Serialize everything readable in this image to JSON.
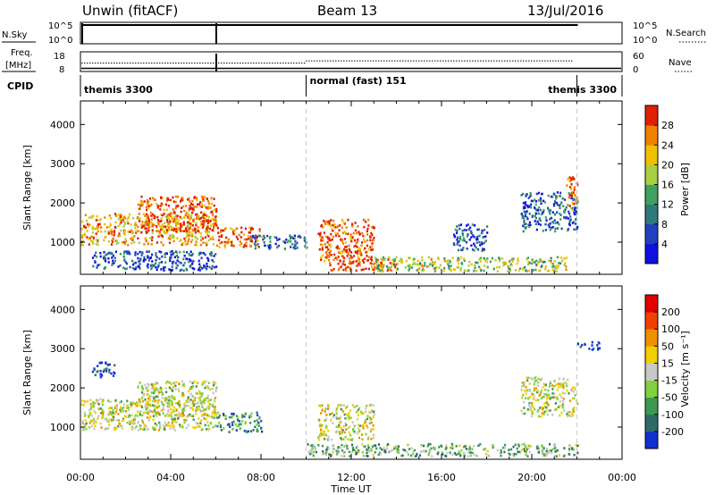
{
  "header": {
    "station": "Unwin (fitACF)",
    "beam": "Beam 13",
    "date": "13/Jul/2016"
  },
  "aux_panels": {
    "nsky_label": "N.Sky",
    "nsky_tick_top": "10^5",
    "nsky_tick_bottom": "10^0",
    "nsearch_label": "N.Search",
    "freq_label": "Freq.",
    "freq_unit": "[MHz]",
    "freq_ticks": [
      "18",
      "8"
    ],
    "nave_ticks": [
      "60",
      "0"
    ],
    "nave_label": "Nave",
    "cpid_label": "CPID",
    "cpid_segments": [
      {
        "name": "themis 3300",
        "start_hour": 0,
        "end_hour": 10
      },
      {
        "name": "normal (fast) 151",
        "start_hour": 10,
        "end_hour": 22
      },
      {
        "name": "themis 3300",
        "start_hour": 22,
        "end_hour": 24
      }
    ],
    "nsky_fill_fraction": 0.92,
    "freq_level_mhz": 10.5,
    "nave_level_early": 20,
    "nave_level_mid": 27
  },
  "chart_data": [
    {
      "type": "heatmap",
      "panel": "power",
      "ylabel": "Slant Range [km]",
      "xlabel": "Time UT",
      "xlim_hours": [
        0,
        24
      ],
      "ylim_km": [
        180,
        4600
      ],
      "y_ticks": [
        1000,
        2000,
        3000,
        4000
      ],
      "x_tick_labels": [
        "00:00",
        "04:00",
        "08:00",
        "12:00",
        "16:00",
        "20:00",
        "00:00"
      ],
      "colorbar": {
        "label": "Power [dB]",
        "ticks": [
          "4",
          "8",
          "12",
          "16",
          "20",
          "24",
          "28"
        ],
        "colors": [
          "#1010e0",
          "#2040c0",
          "#2e7a7a",
          "#3fa060",
          "#a8d040",
          "#f0c000",
          "#f08000",
          "#e02000"
        ]
      },
      "regions": [
        {
          "t0": 0.0,
          "t1": 6.0,
          "r0": 950,
          "r1": 1750,
          "level": 0.75
        },
        {
          "t0": 2.5,
          "t1": 6.0,
          "r0": 1300,
          "r1": 2200,
          "level": 0.9
        },
        {
          "t0": 6.0,
          "t1": 8.0,
          "r0": 900,
          "r1": 1400,
          "level": 0.85
        },
        {
          "t0": 7.5,
          "t1": 10.0,
          "r0": 850,
          "r1": 1200,
          "level": 0.25
        },
        {
          "t0": 0.5,
          "t1": 6.0,
          "r0": 300,
          "r1": 800,
          "level": 0.2
        },
        {
          "t0": 10.5,
          "t1": 13.0,
          "r0": 500,
          "r1": 1600,
          "level": 0.9
        },
        {
          "t0": 11.0,
          "t1": 14.0,
          "r0": 300,
          "r1": 600,
          "level": 0.95
        },
        {
          "t0": 13.0,
          "t1": 21.5,
          "r0": 280,
          "r1": 650,
          "level": 0.55
        },
        {
          "t0": 16.5,
          "t1": 18.0,
          "r0": 800,
          "r1": 1500,
          "level": 0.2
        },
        {
          "t0": 19.5,
          "t1": 22.0,
          "r0": 1300,
          "r1": 2300,
          "level": 0.25
        },
        {
          "t0": 21.5,
          "t1": 22.0,
          "r0": 1800,
          "r1": 2700,
          "level": 0.8
        }
      ]
    },
    {
      "type": "heatmap",
      "panel": "velocity",
      "ylabel": "Slant Range [km]",
      "xlabel": "Time UT",
      "xlim_hours": [
        0,
        24
      ],
      "ylim_km": [
        180,
        4600
      ],
      "y_ticks": [
        1000,
        2000,
        3000,
        4000
      ],
      "x_tick_labels": [
        "00:00",
        "04:00",
        "08:00",
        "12:00",
        "16:00",
        "20:00",
        "00:00"
      ],
      "colorbar": {
        "label": "Velocity [m s⁻¹]",
        "ticks": [
          "200",
          "100",
          "50",
          "15",
          "-15",
          "-50",
          "-100",
          "-200"
        ],
        "colors": [
          "#1030d0",
          "#2e6a6a",
          "#3c9a50",
          "#80d040",
          "#c8c8c8",
          "#f0d000",
          "#f09000",
          "#f04000",
          "#e00000"
        ]
      },
      "regions": [
        {
          "t0": 0.0,
          "t1": 6.0,
          "r0": 950,
          "r1": 1750,
          "level": 0.5
        },
        {
          "t0": 2.5,
          "t1": 6.0,
          "r0": 1300,
          "r1": 2200,
          "level": 0.5
        },
        {
          "t0": 6.0,
          "t1": 8.0,
          "r0": 900,
          "r1": 1400,
          "level": 0.75
        },
        {
          "t0": 10.5,
          "t1": 13.0,
          "r0": 700,
          "r1": 1600,
          "level": 0.5
        },
        {
          "t0": 10.0,
          "t1": 22.0,
          "r0": 280,
          "r1": 600,
          "level": 0.65
        },
        {
          "t0": 19.5,
          "t1": 22.0,
          "r0": 1300,
          "r1": 2300,
          "level": 0.5
        },
        {
          "t0": 0.5,
          "t1": 1.5,
          "r0": 2300,
          "r1": 2700,
          "level": 0.95
        },
        {
          "t0": 22.0,
          "t1": 23.0,
          "r0": 3000,
          "r1": 3200,
          "level": 0.95
        }
      ]
    }
  ]
}
